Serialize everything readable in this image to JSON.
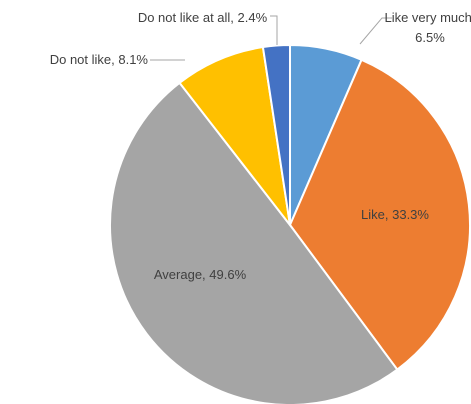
{
  "chart_data": {
    "type": "pie",
    "values": [
      6.5,
      33.3,
      49.6,
      8.1,
      2.4
    ],
    "value_labels": [
      "Like very much, 6.5%",
      "Like, 33.3%",
      "Average, 49.6%",
      "Do not like, 8.1%",
      "Do not like at all, 2.4%"
    ],
    "colors": [
      "#5b9bd5",
      "#ed7d31",
      "#a5a5a5",
      "#ffc000",
      "#4472c4"
    ]
  }
}
